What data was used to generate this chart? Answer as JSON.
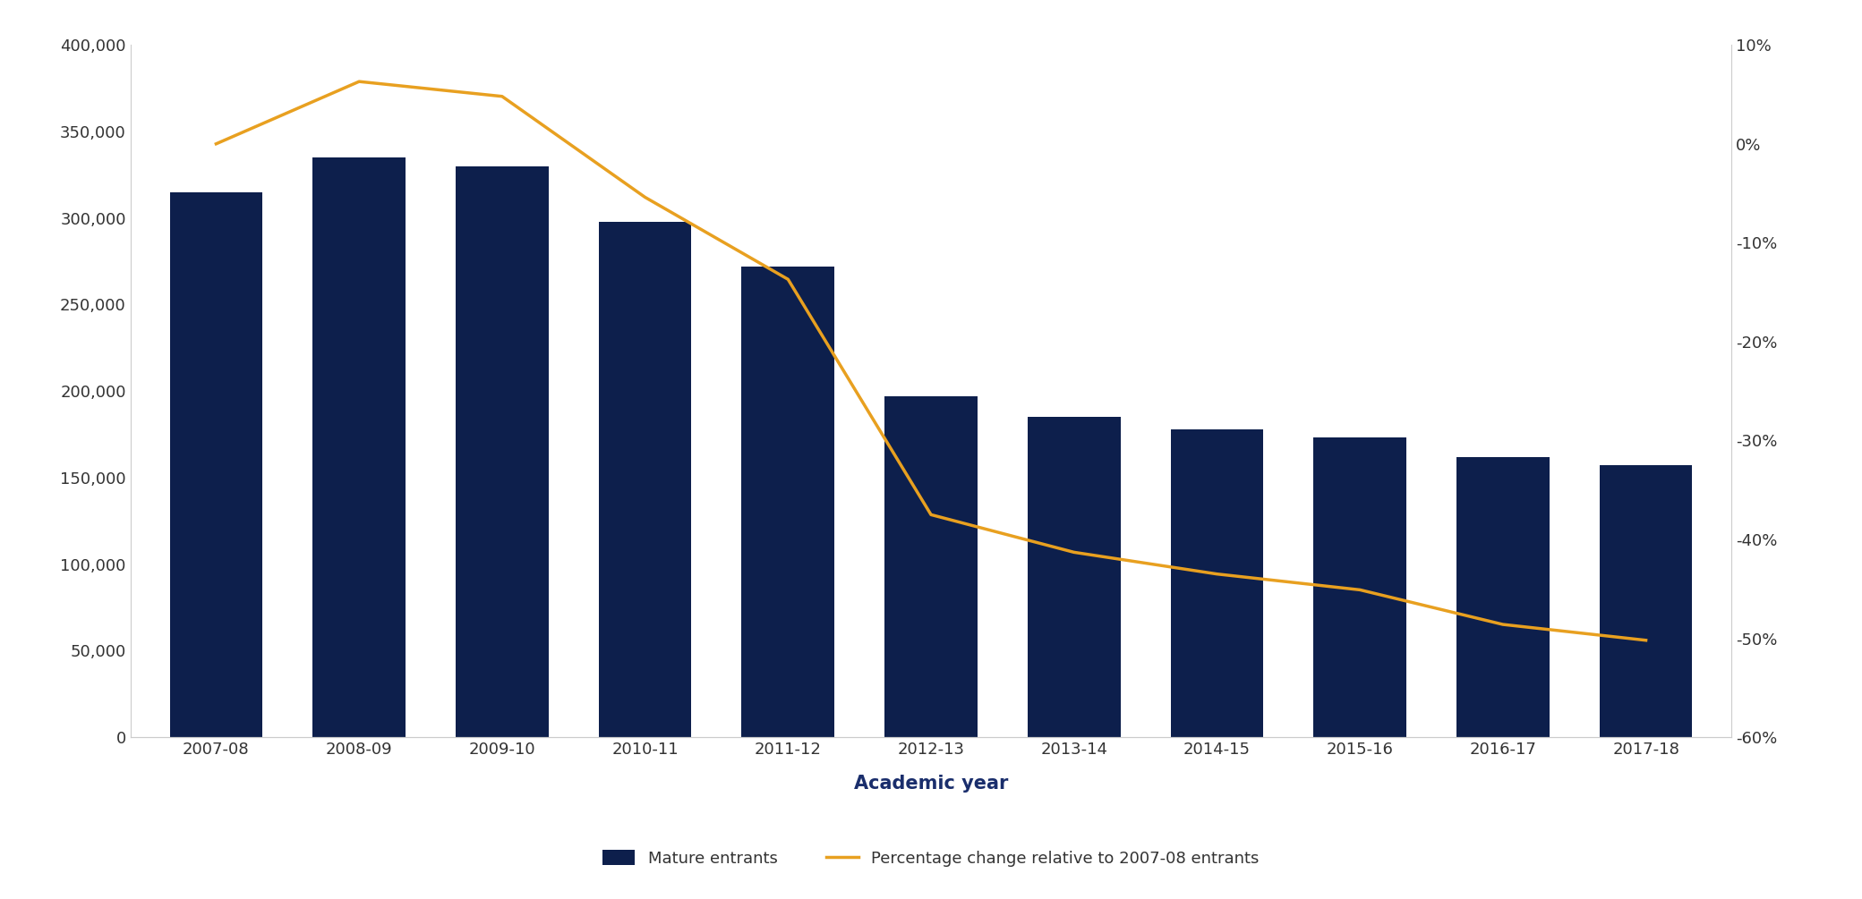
{
  "categories": [
    "2007-08",
    "2008-09",
    "2009-10",
    "2010-11",
    "2011-12",
    "2012-13",
    "2013-14",
    "2014-15",
    "2015-16",
    "2016-17",
    "2017-18"
  ],
  "bar_values": [
    315000,
    335000,
    330000,
    298000,
    272000,
    197000,
    185000,
    178000,
    173000,
    162000,
    157000
  ],
  "pct_change": [
    0.0,
    6.3,
    4.8,
    -5.4,
    -13.7,
    -37.5,
    -41.3,
    -43.5,
    -45.1,
    -48.6,
    -50.2
  ],
  "bar_color": "#0d1f4c",
  "line_color": "#e8a020",
  "bar_label": "Mature entrants",
  "line_label": "Percentage change relative to 2007-08 entrants",
  "xlabel": "Academic year",
  "ylim_left": [
    0,
    400000
  ],
  "ylim_right": [
    -60,
    10
  ],
  "background_color": "#ffffff",
  "axis_label_fontsize": 15,
  "tick_fontsize": 13,
  "legend_fontsize": 13,
  "xlabel_color": "#1a2e6c",
  "tick_color": "#333333",
  "spine_color": "#cccccc"
}
